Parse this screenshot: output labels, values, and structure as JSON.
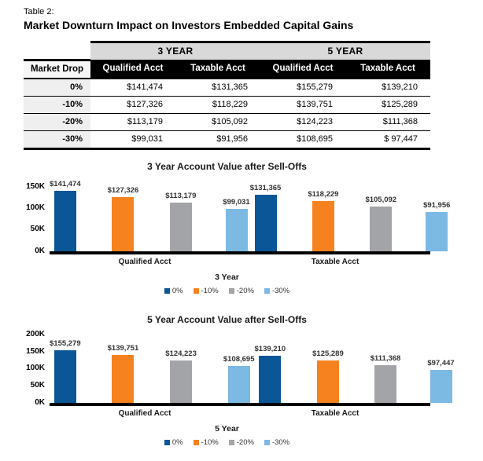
{
  "page": {
    "eyebrow": "Table 2:",
    "title": "Market Downturn Impact on Investors Embedded Capital Gains"
  },
  "table": {
    "group_headers": [
      "3 YEAR",
      "5 YEAR"
    ],
    "col_headers": [
      "Market Drop",
      "Qualified Acct",
      "Taxable Acct",
      "Qualified Acct",
      "Taxable Acct"
    ],
    "rows": [
      {
        "drop": "0%",
        "values": [
          "$141,474",
          "$131,365",
          "$155,279",
          "$139,210"
        ]
      },
      {
        "drop": "-10%",
        "values": [
          "$127,326",
          "$118,229",
          "$139,751",
          "$125,289"
        ]
      },
      {
        "drop": "-20%",
        "values": [
          "$113,179",
          "$105,092",
          "$124,223",
          "$111,368"
        ]
      },
      {
        "drop": "-30%",
        "values": [
          "$99,031",
          "$91,956",
          "$108,695",
          "$ 97,447"
        ]
      }
    ]
  },
  "colors": {
    "series_0pct": "#0B5697",
    "series_minus10pct": "#F5821F",
    "series_minus20pct": "#A2A4A7",
    "series_minus30pct": "#7CB9E3"
  },
  "chart_data": [
    {
      "type": "bar",
      "title": "3 Year Account Value after Sell-Offs",
      "xlabel": "3 Year",
      "ylabel": "",
      "categories": [
        "Qualified Acct",
        "Taxable Acct"
      ],
      "series": [
        {
          "name": "0%",
          "color": "#0B5697",
          "values": [
            141474,
            131365
          ]
        },
        {
          "name": "-10%",
          "color": "#F5821F",
          "values": [
            127326,
            118229
          ]
        },
        {
          "name": "-20%",
          "color": "#A2A4A7",
          "values": [
            113179,
            105092
          ]
        },
        {
          "name": "-30%",
          "color": "#7CB9E3",
          "values": [
            99031,
            91956
          ]
        }
      ],
      "yticks": [
        {
          "label": "150K",
          "value": 150000
        },
        {
          "label": "100K",
          "value": 100000
        },
        {
          "label": "50K",
          "value": 50000
        },
        {
          "label": "0K",
          "value": 0
        }
      ],
      "ylim": [
        0,
        170000
      ],
      "grid": false,
      "legend_position": "bottom",
      "value_label_format": "$#,##0"
    },
    {
      "type": "bar",
      "title": "5 Year Account Value after Sell-Offs",
      "xlabel": "5 Year",
      "ylabel": "",
      "categories": [
        "Qualified Acct",
        "Taxable Acct"
      ],
      "series": [
        {
          "name": "0%",
          "color": "#0B5697",
          "values": [
            155279,
            139210
          ]
        },
        {
          "name": "-10%",
          "color": "#F5821F",
          "values": [
            139751,
            125289
          ]
        },
        {
          "name": "-20%",
          "color": "#A2A4A7",
          "values": [
            124223,
            111368
          ]
        },
        {
          "name": "-30%",
          "color": "#7CB9E3",
          "values": [
            108695,
            97447
          ]
        }
      ],
      "yticks": [
        {
          "label": "200K",
          "value": 200000
        },
        {
          "label": "150K",
          "value": 150000
        },
        {
          "label": "100K",
          "value": 100000
        },
        {
          "label": "50K",
          "value": 50000
        },
        {
          "label": "0K",
          "value": 0
        }
      ],
      "ylim": [
        0,
        209000
      ],
      "grid": false,
      "legend_position": "bottom",
      "value_label_format": "$#,##0"
    }
  ]
}
